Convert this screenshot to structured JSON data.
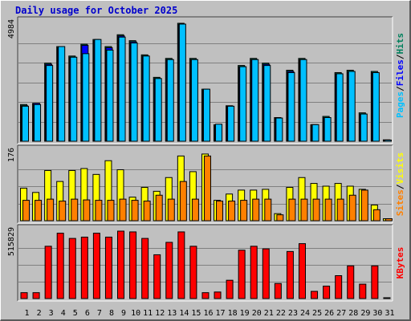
{
  "chart_data": {
    "type": "bar",
    "title": "Daily usage for October 2025",
    "days": [
      "1",
      "2",
      "3",
      "4",
      "5",
      "6",
      "7",
      "8",
      "9",
      "10",
      "11",
      "12",
      "13",
      "14",
      "15",
      "16",
      "17",
      "18",
      "19",
      "20",
      "21",
      "22",
      "23",
      "24",
      "25",
      "26",
      "27",
      "28",
      "29",
      "30",
      "31"
    ],
    "weekend_days": [
      "4",
      "5",
      "11",
      "12",
      "18",
      "19",
      "25",
      "26"
    ],
    "colors": {
      "hits": "#00805c",
      "files": "#0000ff",
      "pages": "#00c0ff",
      "visits": "#ffff00",
      "sites": "#ff8000",
      "kbytes": "#ff0000",
      "weekend_label": "#00805c",
      "title": "#0000cc",
      "panel_bg": "#c0c0c0"
    },
    "panels": [
      {
        "id": "hits",
        "max_label": "4984",
        "ymax": 4984,
        "series": [
          {
            "name": "Hits",
            "color": "#00805c",
            "values": [
              1550,
              1600,
              3300,
              4000,
              3600,
              4100,
              4300,
              4000,
              4500,
              4250,
              3650,
              2700,
              3500,
              4984,
              3500,
              2200,
              700,
              1500,
              3200,
              3500,
              3300,
              1000,
              3000,
              3500,
              700,
              1050,
              2900,
              3000,
              1200,
              2950,
              60
            ]
          },
          {
            "name": "Files",
            "color": "#0000ff",
            "values": [
              1500,
              1600,
              3250,
              3950,
              3550,
              4050,
              4250,
              3950,
              4450,
              4200,
              3600,
              2650,
              3450,
              4930,
              3450,
              2150,
              650,
              1480,
              3150,
              3450,
              3250,
              980,
              2950,
              3450,
              700,
              1000,
              2850,
              2950,
              1150,
              2900,
              50
            ]
          },
          {
            "name": "Pages",
            "color": "#00c0ff",
            "values": [
              1480,
              1550,
              3200,
              4000,
              3550,
              3700,
              4300,
              3850,
              4400,
              4150,
              3600,
              2650,
              3450,
              4950,
              3450,
              2200,
              720,
              1480,
              3150,
              3450,
              3200,
              980,
              2900,
              3450,
              700,
              1000,
              2850,
              2950,
              1150,
              2900,
              50
            ]
          }
        ],
        "legend": [
          {
            "text": "Hits",
            "color": "#00805c"
          },
          {
            "text": "/",
            "color": "#000000"
          },
          {
            "text": "Files",
            "color": "#0000ff"
          },
          {
            "text": "/",
            "color": "#000000"
          },
          {
            "text": "Pages",
            "color": "#00c0ff"
          }
        ]
      },
      {
        "id": "visits",
        "max_label": "176",
        "ymax": 176,
        "series": [
          {
            "name": "Visits",
            "color": "#ffff00",
            "values": [
              83,
              72,
              128,
              100,
              128,
              133,
              118,
              153,
              130,
              60,
              85,
              75,
              110,
              165,
              125,
              170,
              52,
              68,
              78,
              78,
              80,
              18,
              85,
              110,
              95,
              88,
              95,
              88,
              80,
              40,
              5
            ]
          },
          {
            "name": "Sites",
            "color": "#ff8000",
            "values": [
              52,
              52,
              55,
              50,
              55,
              53,
              52,
              52,
              55,
              52,
              50,
              65,
              55,
              100,
              55,
              165,
              50,
              50,
              52,
              55,
              55,
              15,
              55,
              55,
              55,
              55,
              55,
              65,
              78,
              28,
              5
            ]
          }
        ],
        "legend": [
          {
            "text": "Visits",
            "color": "#ffff00"
          },
          {
            "text": "/",
            "color": "#000000"
          },
          {
            "text": "Sites",
            "color": "#ff8000"
          }
        ]
      },
      {
        "id": "kbytes",
        "max_label": "515829",
        "ymax": 515829,
        "series": [
          {
            "name": "KBytes",
            "color": "#ff0000",
            "values": [
              45000,
              45000,
              400000,
              500000,
              460000,
              470000,
              500000,
              470000,
              515829,
              510000,
              460000,
              335000,
              430000,
              510000,
              400000,
              45000,
              50000,
              140000,
              370000,
              400000,
              380000,
              115000,
              360000,
              420000,
              55000,
              95000,
              175000,
              250000,
              110000,
              250000,
              5000
            ]
          }
        ],
        "legend": [
          {
            "text": "KBytes",
            "color": "#ff0000"
          }
        ]
      }
    ]
  }
}
